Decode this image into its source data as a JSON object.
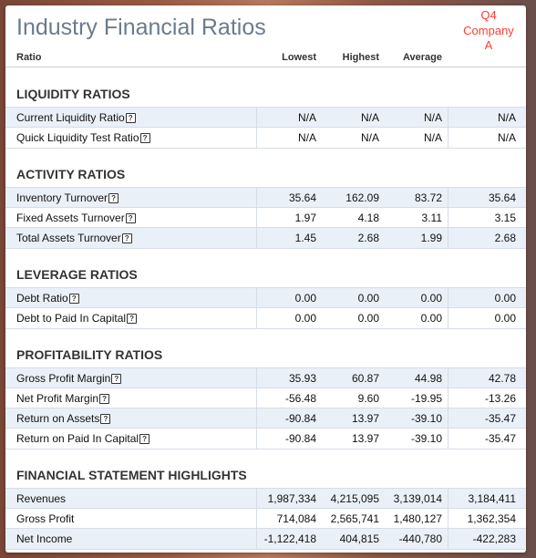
{
  "title": "Industry Financial Ratios",
  "headers": {
    "ratio": "Ratio",
    "lowest": "Lowest",
    "highest": "Highest",
    "average": "Average",
    "company_lines": [
      "Q4",
      "Company",
      "A"
    ]
  },
  "help_glyph": "?",
  "colors": {
    "title": "#6b7b8c",
    "company_header": "#ff3b30",
    "row_shade": "#eaf0f8"
  },
  "sections": [
    {
      "title": "LIQUIDITY RATIOS",
      "rows": [
        {
          "label": "Current Liquidity Ratio",
          "help": true,
          "lowest": "N/A",
          "highest": "N/A",
          "average": "N/A",
          "company": "N/A"
        },
        {
          "label": "Quick Liquidity Test Ratio",
          "help": true,
          "lowest": "N/A",
          "highest": "N/A",
          "average": "N/A",
          "company": "N/A"
        }
      ]
    },
    {
      "title": "ACTIVITY RATIOS",
      "rows": [
        {
          "label": "Inventory Turnover",
          "help": true,
          "lowest": "35.64",
          "highest": "162.09",
          "average": "83.72",
          "company": "35.64"
        },
        {
          "label": "Fixed Assets Turnover",
          "help": true,
          "lowest": "1.97",
          "highest": "4.18",
          "average": "3.11",
          "company": "3.15"
        },
        {
          "label": "Total Assets Turnover",
          "help": true,
          "lowest": "1.45",
          "highest": "2.68",
          "average": "1.99",
          "company": "2.68"
        }
      ]
    },
    {
      "title": "LEVERAGE RATIOS",
      "rows": [
        {
          "label": "Debt Ratio",
          "help": true,
          "lowest": "0.00",
          "highest": "0.00",
          "average": "0.00",
          "company": "0.00"
        },
        {
          "label": "Debt to Paid In Capital",
          "help": true,
          "lowest": "0.00",
          "highest": "0.00",
          "average": "0.00",
          "company": "0.00"
        }
      ]
    },
    {
      "title": "PROFITABILITY RATIOS",
      "rows": [
        {
          "label": "Gross Profit Margin",
          "help": true,
          "lowest": "35.93",
          "highest": "60.87",
          "average": "44.98",
          "company": "42.78"
        },
        {
          "label": "Net Profit Margin",
          "help": true,
          "lowest": "-56.48",
          "highest": "9.60",
          "average": "-19.95",
          "company": "-13.26"
        },
        {
          "label": "Return on Assets",
          "help": true,
          "lowest": "-90.84",
          "highest": "13.97",
          "average": "-39.10",
          "company": "-35.47"
        },
        {
          "label": "Return on Paid In Capital",
          "help": true,
          "lowest": "-90.84",
          "highest": "13.97",
          "average": "-39.10",
          "company": "-35.47"
        }
      ]
    },
    {
      "title": "FINANCIAL STATEMENT HIGHLIGHTS",
      "rows": [
        {
          "label": "Revenues",
          "help": false,
          "lowest": "1,987,334",
          "highest": "4,215,095",
          "average": "3,139,014",
          "company": "3,184,411"
        },
        {
          "label": "Gross Profit",
          "help": false,
          "lowest": "714,084",
          "highest": "2,565,741",
          "average": "1,480,127",
          "company": "1,362,354"
        },
        {
          "label": "Net Income",
          "help": false,
          "lowest": "-1,122,418",
          "highest": "404,815",
          "average": "-440,780",
          "company": "-422,283"
        }
      ]
    }
  ]
}
